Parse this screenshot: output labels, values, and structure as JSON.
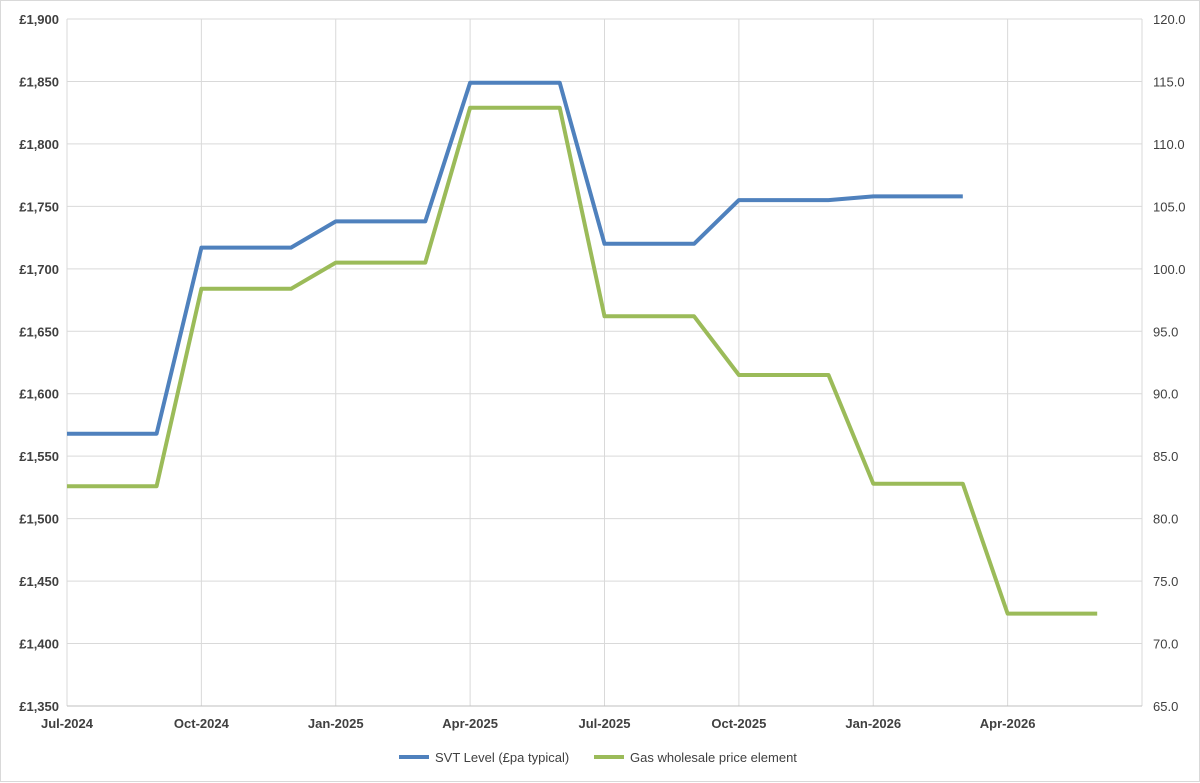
{
  "chart_data": {
    "type": "line",
    "title": "",
    "xlabel": "",
    "ylabel": "",
    "y2label": "",
    "x_ticks": [
      "Jul-2024",
      "Oct-2024",
      "Jan-2025",
      "Apr-2025",
      "Jul-2025",
      "Oct-2025",
      "Jan-2026",
      "Apr-2026"
    ],
    "y_left": {
      "min": 1350,
      "max": 1900,
      "step": 50,
      "ticks": [
        "£1,350",
        "£1,400",
        "£1,450",
        "£1,500",
        "£1,550",
        "£1,600",
        "£1,650",
        "£1,700",
        "£1,750",
        "£1,800",
        "£1,850",
        "£1,900"
      ]
    },
    "y_right": {
      "min": 65.0,
      "max": 120.0,
      "step": 5,
      "ticks": [
        "65.0",
        "70.0",
        "75.0",
        "80.0",
        "85.0",
        "90.0",
        "95.0",
        "100.0",
        "105.0",
        "110.0",
        "115.0",
        "120.0"
      ]
    },
    "grid": true,
    "legend_position": "bottom",
    "series": [
      {
        "name": "SVT Level (£pa typical)",
        "axis": "left",
        "color": "#4f81bd",
        "points": [
          [
            "2024-07",
            1568
          ],
          [
            "2024-08",
            1568
          ],
          [
            "2024-09",
            1568
          ],
          [
            "2024-10",
            1717
          ],
          [
            "2024-11",
            1717
          ],
          [
            "2024-12",
            1717
          ],
          [
            "2025-01",
            1738
          ],
          [
            "2025-02",
            1738
          ],
          [
            "2025-03",
            1738
          ],
          [
            "2025-04",
            1849
          ],
          [
            "2025-05",
            1849
          ],
          [
            "2025-06",
            1849
          ],
          [
            "2025-07",
            1720
          ],
          [
            "2025-08",
            1720
          ],
          [
            "2025-09",
            1720
          ],
          [
            "2025-10",
            1755
          ],
          [
            "2025-11",
            1755
          ],
          [
            "2025-12",
            1755
          ],
          [
            "2026-01",
            1758
          ],
          [
            "2026-02",
            1758
          ],
          [
            "2026-03",
            1758
          ]
        ]
      },
      {
        "name": "Gas wholesale price element",
        "axis": "right",
        "color": "#9bbb59",
        "points": [
          [
            "2024-07",
            82.6
          ],
          [
            "2024-08",
            82.6
          ],
          [
            "2024-09",
            82.6
          ],
          [
            "2024-10",
            98.4
          ],
          [
            "2024-11",
            98.4
          ],
          [
            "2024-12",
            98.4
          ],
          [
            "2025-01",
            100.5
          ],
          [
            "2025-02",
            100.5
          ],
          [
            "2025-03",
            100.5
          ],
          [
            "2025-04",
            112.9
          ],
          [
            "2025-05",
            112.9
          ],
          [
            "2025-06",
            112.9
          ],
          [
            "2025-07",
            96.2
          ],
          [
            "2025-08",
            96.2
          ],
          [
            "2025-09",
            96.2
          ],
          [
            "2025-10",
            91.5
          ],
          [
            "2025-11",
            91.5
          ],
          [
            "2025-12",
            91.5
          ],
          [
            "2026-01",
            82.8
          ],
          [
            "2026-02",
            82.8
          ],
          [
            "2026-03",
            82.8
          ],
          [
            "2026-04",
            72.4
          ],
          [
            "2026-05",
            72.4
          ],
          [
            "2026-06",
            72.4
          ]
        ]
      }
    ]
  }
}
